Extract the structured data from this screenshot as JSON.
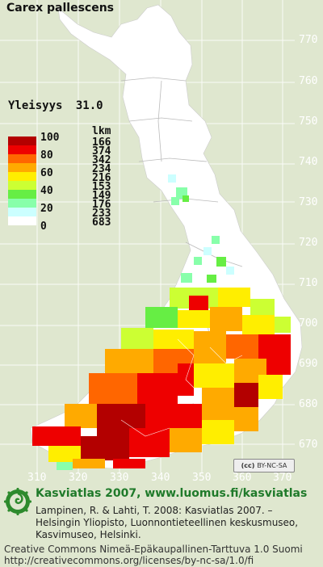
{
  "map": {
    "title": "Carex pallescens",
    "yleisyys_label": "Yleisyys",
    "yleisyys_value": "31.0",
    "legend": {
      "ticks": [
        "100",
        "80",
        "60",
        "40",
        "20",
        "0"
      ],
      "count_header": "lkm",
      "colors": [
        "#b30000",
        "#ee0000",
        "#ff6600",
        "#ffaa00",
        "#ffee00",
        "#ccff33",
        "#66ee44",
        "#88ffaa",
        "#ccffff",
        "#ffffff"
      ],
      "counts": [
        "166",
        "374",
        "342",
        "234",
        "216",
        "153",
        "149",
        "176",
        "233",
        "683"
      ]
    },
    "y_axis_labels": [
      "770",
      "760",
      "750",
      "740",
      "730",
      "720",
      "710",
      "700",
      "690",
      "680",
      "670"
    ],
    "x_axis_labels": [
      "310",
      "320",
      "330",
      "340",
      "350",
      "360",
      "370"
    ],
    "license_badge": "BY-NC-SA"
  },
  "footer": {
    "title": "Kasviatlas 2007, www.luomus.fi/kasviatlas",
    "citation_line1": "Lampinen, R. & Lahti, T. 2008: Kasviatlas 2007. –",
    "citation_line2": "Helsingin Yliopisto, Luonnontieteellinen keskusmuseo,",
    "citation_line3": "Kasvimuseo, Helsinki.",
    "license_line1": "Creative Commons Nimeä-Epäkaupallinen-Tarttuva 1.0 Suomi",
    "license_line2": "http://creativecommons.org/licenses/by-nc-sa/1.0/fi"
  }
}
